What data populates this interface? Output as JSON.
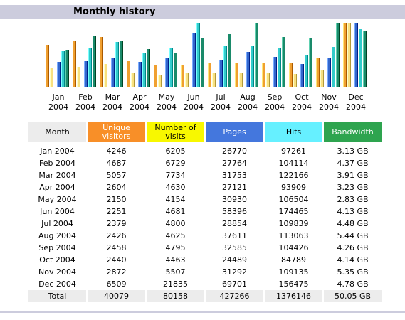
{
  "panel": {
    "title": "Monthly history"
  },
  "colors": {
    "visitors": "#f0a030",
    "visits": "#f8e080",
    "pages": "#3366cc",
    "hits": "#33cccc",
    "bandwidth": "#1a8a6a"
  },
  "table": {
    "headers": {
      "month": "Month",
      "unique_line1": "Unique",
      "unique_line2": "visitors",
      "visits_line1": "Number of",
      "visits_line2": "visits",
      "pages": "Pages",
      "hits": "Hits",
      "bandwidth": "Bandwidth"
    },
    "rows": [
      {
        "month": "Jan 2004",
        "unique": "4246",
        "visits": "6205",
        "pages": "26770",
        "hits": "97261",
        "bandwidth": "3.13 GB"
      },
      {
        "month": "Feb 2004",
        "unique": "4687",
        "visits": "6729",
        "pages": "27764",
        "hits": "104114",
        "bandwidth": "4.37 GB"
      },
      {
        "month": "Mar 2004",
        "unique": "5057",
        "visits": "7734",
        "pages": "31753",
        "hits": "122166",
        "bandwidth": "3.91 GB"
      },
      {
        "month": "Apr 2004",
        "unique": "2604",
        "visits": "4630",
        "pages": "27121",
        "hits": "93909",
        "bandwidth": "3.23 GB"
      },
      {
        "month": "May 2004",
        "unique": "2150",
        "visits": "4154",
        "pages": "30930",
        "hits": "106504",
        "bandwidth": "2.83 GB"
      },
      {
        "month": "Jun 2004",
        "unique": "2251",
        "visits": "4681",
        "pages": "58396",
        "hits": "174465",
        "bandwidth": "4.13 GB"
      },
      {
        "month": "Jul 2004",
        "unique": "2379",
        "visits": "4800",
        "pages": "28854",
        "hits": "109839",
        "bandwidth": "4.48 GB"
      },
      {
        "month": "Aug 2004",
        "unique": "2426",
        "visits": "4625",
        "pages": "37611",
        "hits": "113063",
        "bandwidth": "5.44 GB"
      },
      {
        "month": "Sep 2004",
        "unique": "2458",
        "visits": "4795",
        "pages": "32585",
        "hits": "104426",
        "bandwidth": "4.26 GB"
      },
      {
        "month": "Oct 2004",
        "unique": "2440",
        "visits": "4463",
        "pages": "24489",
        "hits": "84789",
        "bandwidth": "4.14 GB"
      },
      {
        "month": "Nov 2004",
        "unique": "2872",
        "visits": "5507",
        "pages": "31292",
        "hits": "109135",
        "bandwidth": "5.35 GB"
      },
      {
        "month": "Dec 2004",
        "unique": "6509",
        "visits": "21835",
        "pages": "69701",
        "hits": "156475",
        "bandwidth": "4.78 GB"
      }
    ],
    "total": {
      "month": "Total",
      "unique": "40079",
      "visits": "80158",
      "pages": "427266",
      "hits": "1376146",
      "bandwidth": "50.05 GB"
    }
  },
  "chart_data": {
    "type": "bar",
    "categories": [
      {
        "month": "Jan",
        "year": "2004"
      },
      {
        "month": "Feb",
        "year": "2004"
      },
      {
        "month": "Mar",
        "year": "2004"
      },
      {
        "month": "Apr",
        "year": "2004"
      },
      {
        "month": "May",
        "year": "2004"
      },
      {
        "month": "Jun",
        "year": "2004"
      },
      {
        "month": "Jul",
        "year": "2004"
      },
      {
        "month": "Aug",
        "year": "2004"
      },
      {
        "month": "Sep",
        "year": "2004"
      },
      {
        "month": "Oct",
        "year": "2004"
      },
      {
        "month": "Nov",
        "year": "2004"
      },
      {
        "month": "Dec",
        "year": "2004"
      }
    ],
    "series": [
      {
        "key": "unique",
        "values": [
          4246,
          4687,
          5057,
          2604,
          2150,
          2251,
          2379,
          2426,
          2458,
          2440,
          2872,
          6509
        ]
      },
      {
        "key": "visits",
        "values": [
          6205,
          6729,
          7734,
          4630,
          4154,
          4681,
          4800,
          4625,
          4795,
          4463,
          5507,
          21835
        ]
      },
      {
        "key": "pages",
        "values": [
          26770,
          27764,
          31753,
          27121,
          30930,
          58396,
          28854,
          37611,
          32585,
          24489,
          31292,
          69701
        ]
      },
      {
        "key": "hits",
        "values": [
          97261,
          104114,
          122166,
          93909,
          106504,
          174465,
          109839,
          113063,
          104426,
          84789,
          109135,
          156475
        ]
      },
      {
        "key": "bandwidth",
        "values": [
          3.13,
          4.37,
          3.91,
          3.23,
          2.83,
          4.13,
          4.48,
          5.44,
          4.26,
          4.14,
          5.35,
          4.78
        ]
      }
    ],
    "grid": false,
    "legend": "none"
  }
}
